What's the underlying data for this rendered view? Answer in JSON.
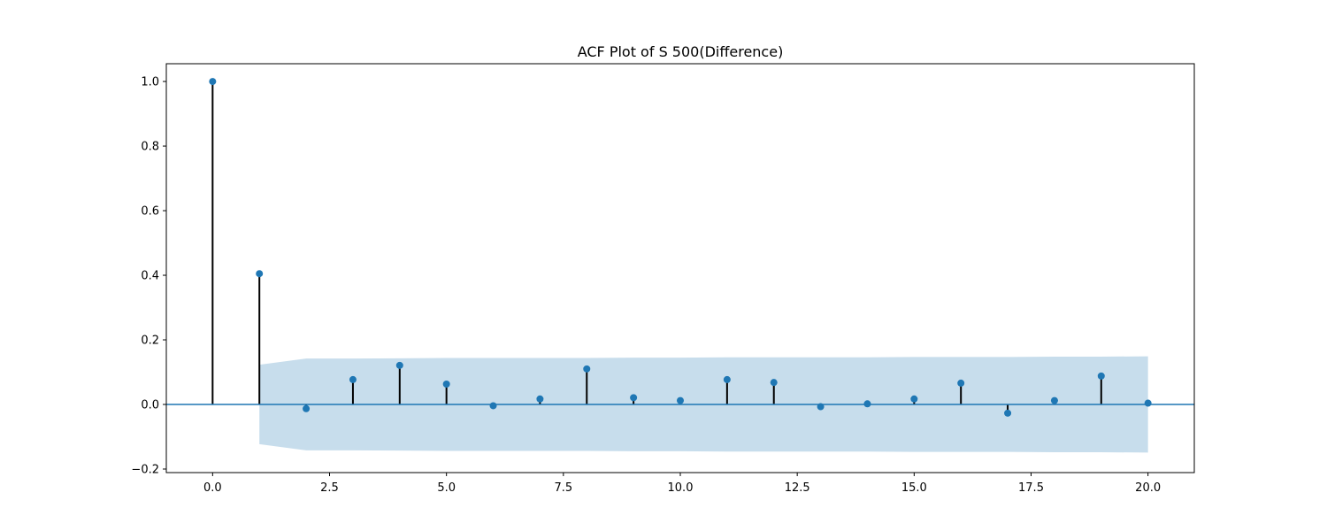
{
  "chart_data": {
    "type": "scatter",
    "title": "ACF Plot of S 500(Difference)",
    "xlabel": "",
    "ylabel": "",
    "xlim": [
      -0.99,
      20.99
    ],
    "ylim": [
      -0.211,
      1.055
    ],
    "xticks": [
      0.0,
      2.5,
      5.0,
      7.5,
      10.0,
      12.5,
      15.0,
      17.5,
      20.0
    ],
    "xtick_labels": [
      "0.0",
      "2.5",
      "5.0",
      "7.5",
      "10.0",
      "12.5",
      "15.0",
      "17.5",
      "20.0"
    ],
    "yticks": [
      -0.2,
      0.0,
      0.2,
      0.4,
      0.6,
      0.8,
      1.0
    ],
    "ytick_labels": [
      "−0.2",
      "0.0",
      "0.2",
      "0.4",
      "0.6",
      "0.8",
      "1.0"
    ],
    "grid": false,
    "series": [
      {
        "x": [
          0,
          1,
          2,
          3,
          4,
          5,
          6,
          7,
          8,
          9,
          10,
          11,
          12,
          13,
          14,
          15,
          16,
          17,
          18,
          19,
          20
        ],
        "y": [
          1.0,
          0.405,
          -0.013,
          0.077,
          0.121,
          0.063,
          -0.004,
          0.017,
          0.11,
          0.021,
          0.012,
          0.077,
          0.068,
          -0.007,
          0.002,
          0.017,
          0.066,
          -0.027,
          0.012,
          0.088,
          0.004
        ],
        "style": "stem"
      }
    ],
    "confidence_band": {
      "x": [
        1,
        2,
        3,
        4,
        5,
        6,
        7,
        8,
        9,
        10,
        11,
        12,
        13,
        14,
        15,
        16,
        17,
        18,
        19,
        20
      ],
      "upper": [
        0.123,
        0.142,
        0.142,
        0.143,
        0.144,
        0.144,
        0.144,
        0.144,
        0.145,
        0.145,
        0.146,
        0.146,
        0.146,
        0.146,
        0.147,
        0.147,
        0.147,
        0.148,
        0.148,
        0.149
      ]
    },
    "colors": {
      "marker": "#1f77b4",
      "stem": "#000000",
      "baseline": "#1f77b4",
      "band": "#1f77b4",
      "band_opacity": 0.25
    }
  }
}
